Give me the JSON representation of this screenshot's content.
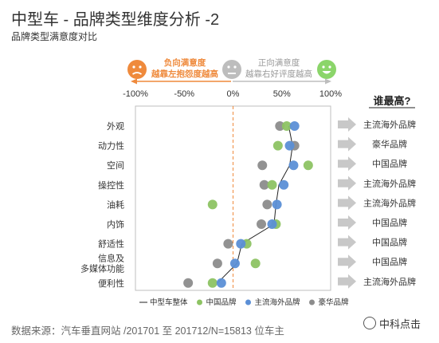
{
  "title": "中型车 - 品牌类型维度分析 -2",
  "subtitle": "品牌类型满意度对比",
  "footer": "数据来源：汽车垂直网站 /201701 至 201712/N=15813 位车主",
  "watermark": "中科点击",
  "legend_banner": {
    "negative_line1": "负向满意度",
    "negative_line2": "越靠左抱怨度越高",
    "positive_line1": "正向满意度",
    "positive_line2": "越靠右好评度越高"
  },
  "winner_header": "谁最高?",
  "colors": {
    "overall": "#222222",
    "domestic": "#8dc363",
    "foreign": "#5b8fd6",
    "luxury": "#8c8c8c",
    "negative": "#ef8a3c",
    "positive": "#8bd56a",
    "neutral": "#bdbdbd",
    "zero_line": "#ef8a3c",
    "arrow": "#c8c8c8"
  },
  "chart_data": {
    "type": "scatter",
    "title": "品牌类型满意度对比",
    "xlim": [
      -100,
      100
    ],
    "xticks": [
      "-100%",
      "-50%",
      "0%",
      "50%",
      "100%"
    ],
    "xtick_values": [
      -100,
      -50,
      0,
      50,
      100
    ],
    "categories": [
      "外观",
      "动力性",
      "空间",
      "操控性",
      "油耗",
      "内饰",
      "舒适性",
      "信息及\n多媒体功能",
      "便利性"
    ],
    "series": [
      {
        "name": "中型车整体",
        "marker": "line",
        "values": [
          57,
          61,
          58,
          47,
          44,
          42,
          9,
          4,
          -16
        ]
      },
      {
        "name": "中国品牌",
        "marker": "dot",
        "values": [
          55,
          46,
          77,
          40,
          -21,
          44,
          14,
          23,
          -21
        ]
      },
      {
        "name": "主流海外品牌",
        "marker": "dot",
        "values": [
          63,
          58,
          62,
          52,
          45,
          40,
          8,
          2,
          -12
        ]
      },
      {
        "name": "豪华品牌",
        "marker": "dot",
        "values": [
          48,
          63,
          30,
          32,
          35,
          29,
          -5,
          -16,
          -46
        ]
      }
    ],
    "winners": [
      "主流海外品牌",
      "豪华品牌",
      "中国品牌",
      "主流海外品牌",
      "主流海外品牌",
      "中国品牌",
      "中国品牌",
      "中国品牌",
      "主流海外品牌"
    ],
    "grid": false,
    "legend_position": "bottom"
  }
}
